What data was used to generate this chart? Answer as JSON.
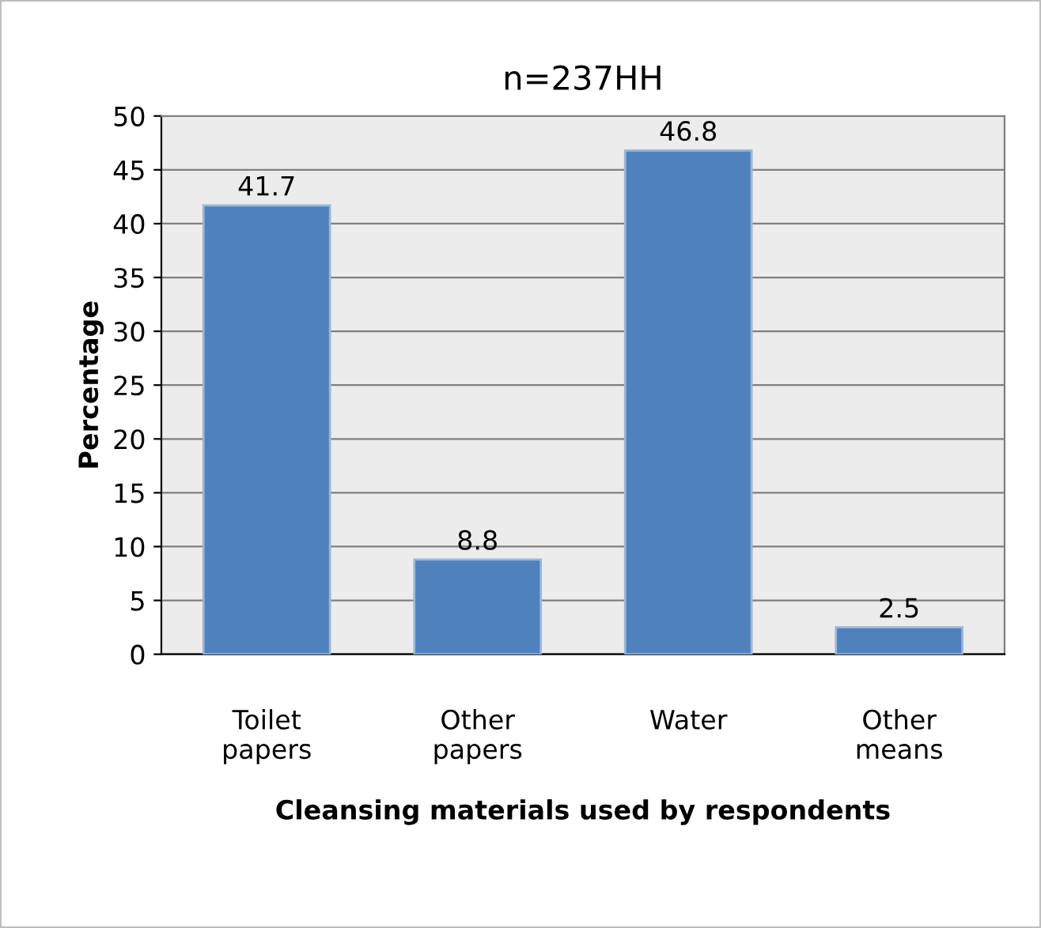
{
  "chart_data": {
    "type": "bar",
    "title": "n=237HH",
    "xlabel": "Cleansing materials used by respondents",
    "ylabel": "Percentage",
    "categories": [
      "Toilet\npapers",
      "Other\npapers",
      "Water",
      "Other\nmeans"
    ],
    "values": [
      41.7,
      8.8,
      46.8,
      2.5
    ],
    "color": "#4f81bd",
    "ylim": [
      0,
      50
    ],
    "yticks": [
      0,
      5,
      10,
      15,
      20,
      25,
      30,
      35,
      40,
      45,
      50
    ],
    "grid": "y",
    "data_labels": true
  }
}
